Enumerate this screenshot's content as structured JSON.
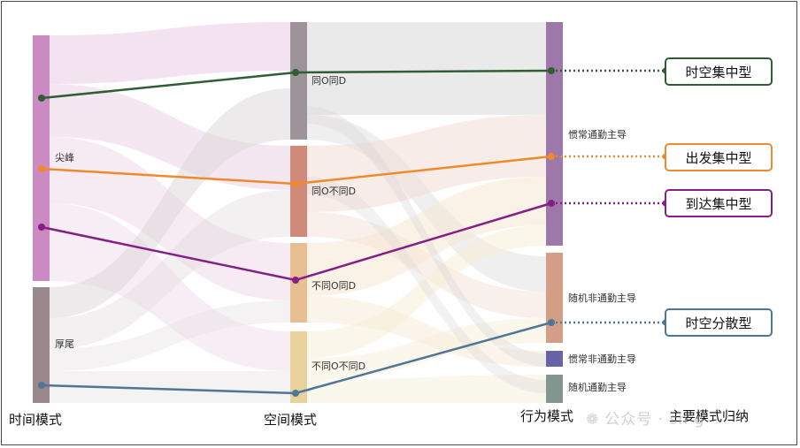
{
  "columns": {
    "time": "时间模式",
    "space": "空间模式",
    "behavior": "行为模式",
    "summary": "主要模式归纳"
  },
  "nodes": {
    "peak": "尖峰",
    "tail": "厚尾",
    "same_od": "同O同D",
    "same_o_diff_d": "同O不同D",
    "diff_o_same_d": "不同O同D",
    "diff_od": "不同O不同D",
    "habitual_commute": "惯常通勤主导",
    "random_noncommute": "随机非通勤主导",
    "habitual_noncommute": "惯常非通勤主导",
    "random_commute": "随机通勤主导"
  },
  "patterns": [
    {
      "label": "时空集中型",
      "color": "#2f5e33"
    },
    {
      "label": "出发集中型",
      "color": "#ee8a2b"
    },
    {
      "label": "到达集中型",
      "color": "#861f85"
    },
    {
      "label": "时空分散型",
      "color": "#4e7696"
    }
  ],
  "node_colors": {
    "peak": "#c98bc1",
    "tail": "#9a888d",
    "same_od": "#9d9499",
    "same_o_diff_d": "#cf8a79",
    "diff_o_same_d": "#e7bf91",
    "diff_od": "#e8d19b",
    "habitual_commute": "#9e78aa",
    "random_noncommute": "#d49e86",
    "habitual_noncommute": "#6863a8",
    "random_commute": "#82958f"
  },
  "watermark": "公众号 · sh      g"
}
